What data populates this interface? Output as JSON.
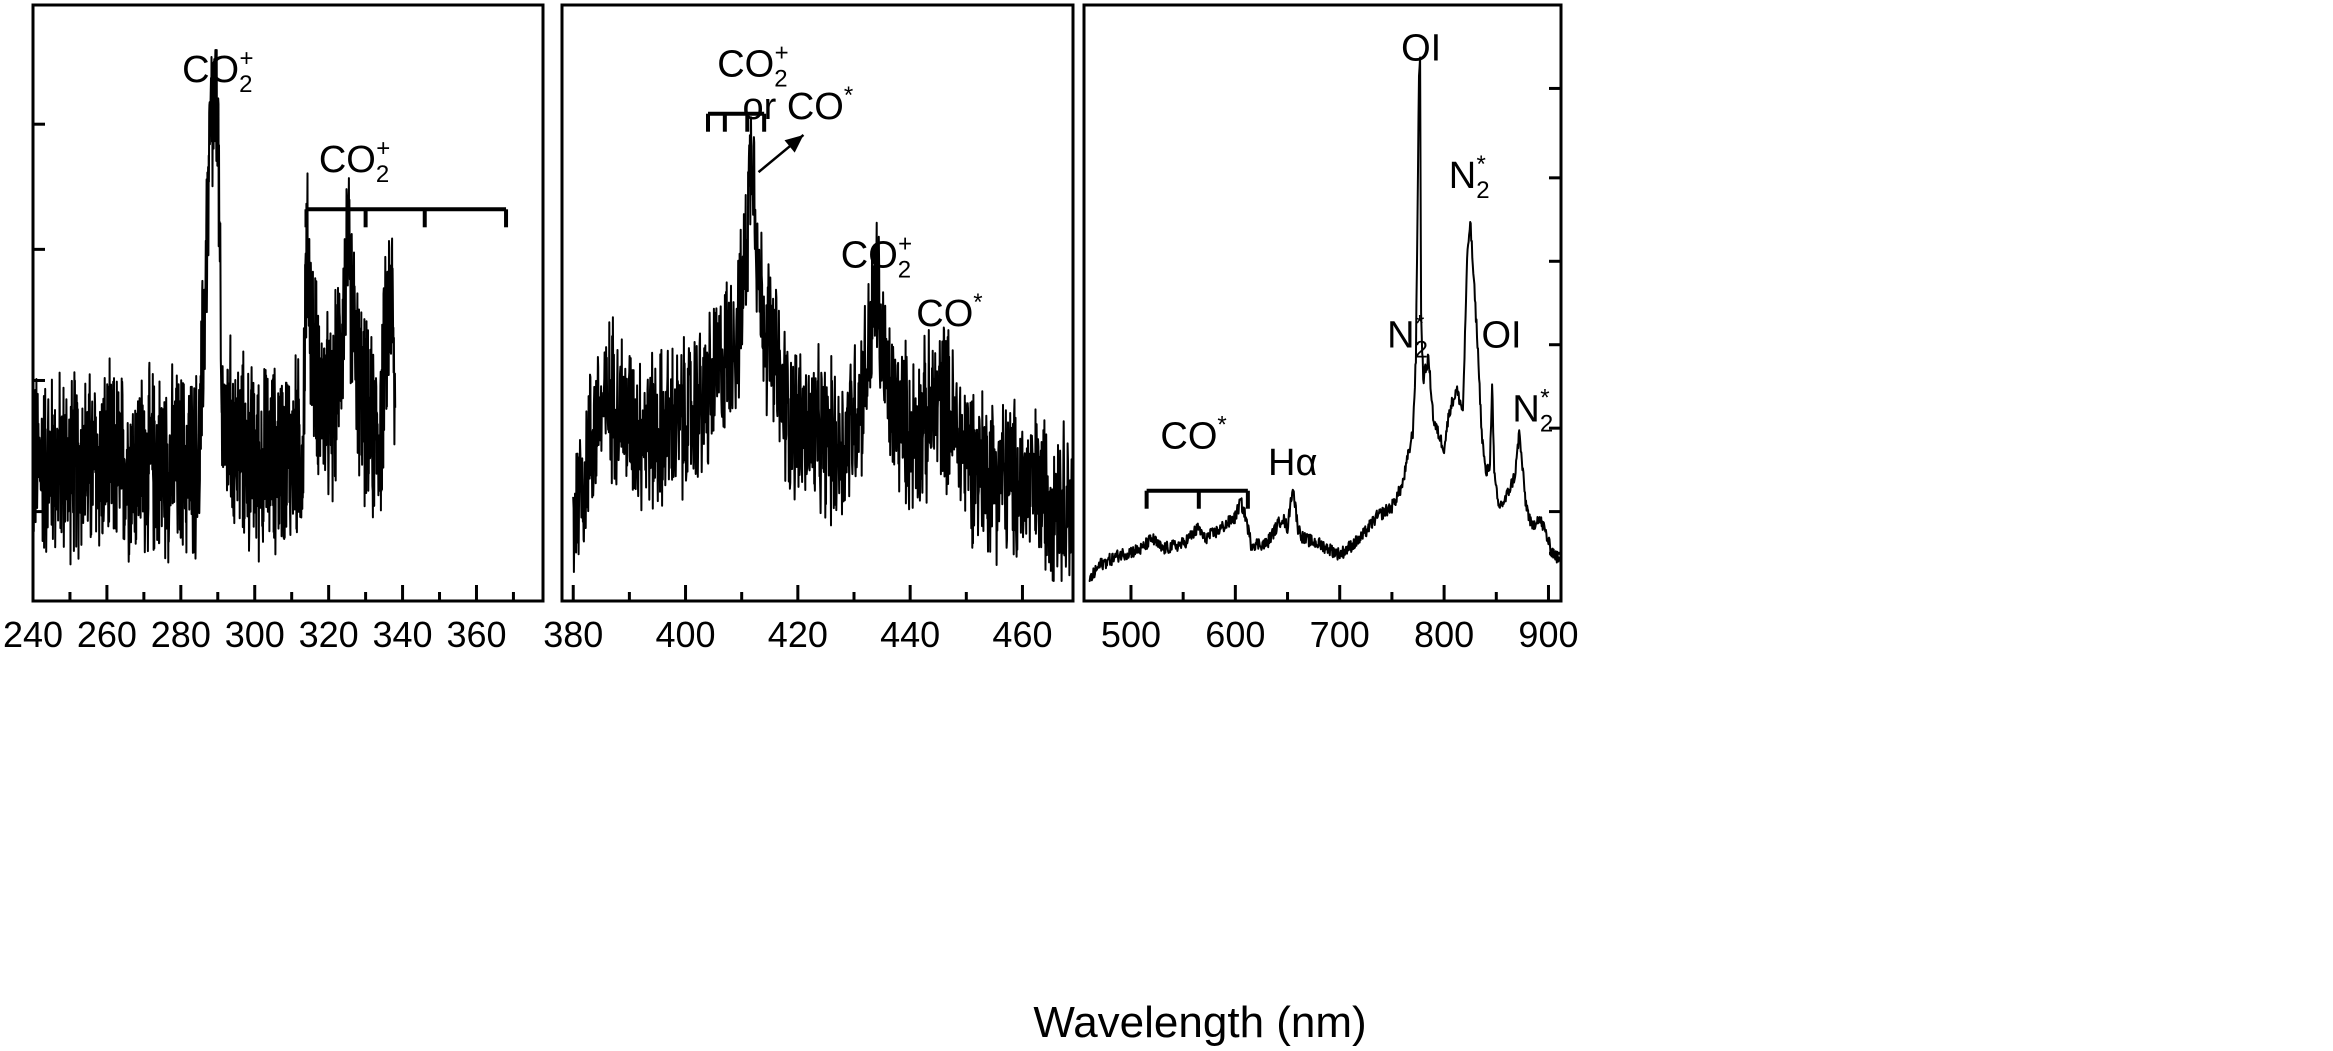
{
  "chart_data": {
    "type": "line",
    "xlabel": "Wavelength (nm)",
    "ylabel": "",
    "grid": false,
    "legend": "none",
    "colors": {
      "line": "#000000",
      "background": "#ffffff"
    },
    "panels": [
      {
        "xlim": [
          240,
          378
        ],
        "ylim": [
          0,
          1
        ],
        "xticks": [
          240,
          260,
          280,
          300,
          320,
          340,
          360
        ],
        "xtick_labels": [
          "240",
          "260",
          "280",
          "300",
          "320",
          "340",
          "360"
        ],
        "series": [
          {
            "noise_amp": 0.16,
            "x": [
              240,
              285,
              288,
              289,
              290,
              291,
              300,
              313,
              314,
              316,
              318,
              321,
              324,
              325,
              326,
              328,
              331,
              334,
              336,
              337,
              338
            ],
            "values": [
              0.22,
              0.22,
              0.85,
              0.88,
              0.9,
              0.3,
              0.22,
              0.25,
              0.62,
              0.42,
              0.35,
              0.3,
              0.5,
              0.62,
              0.55,
              0.38,
              0.28,
              0.28,
              0.5,
              0.55,
              0.3
            ]
          }
        ],
        "annotations": [
          {
            "main": "CO",
            "sub": "2",
            "sup": "+",
            "x": 290,
            "y": 0.94
          },
          {
            "main": "CO",
            "sub": "2",
            "sup": "+",
            "x": 327,
            "y": 0.77
          }
        ],
        "brackets": [
          {
            "x": [
              314,
              330,
              346,
              368
            ],
            "y": 0.7
          }
        ]
      },
      {
        "xlim": [
          378,
          469
        ],
        "ylim": [
          0,
          1
        ],
        "xticks": [
          380,
          400,
          420,
          440,
          460
        ],
        "xtick_labels": [
          "380",
          "400",
          "420",
          "440",
          "460"
        ],
        "series": [
          {
            "noise_amp": 0.14,
            "x": [
              380,
              384,
              387,
              390,
              394,
              400,
              404,
              407,
              410,
              411,
              412,
              413,
              415,
              418,
              422,
              428,
              432,
              434,
              436,
              440,
              443,
              446,
              448,
              452,
              460,
              469
            ],
            "values": [
              0.12,
              0.3,
              0.35,
              0.3,
              0.28,
              0.3,
              0.35,
              0.42,
              0.5,
              0.68,
              0.85,
              0.55,
              0.45,
              0.32,
              0.28,
              0.25,
              0.38,
              0.55,
              0.35,
              0.28,
              0.3,
              0.35,
              0.28,
              0.22,
              0.18,
              0.15
            ]
          }
        ],
        "annotations": [
          {
            "main": "CO",
            "sub": "2",
            "sup": "+",
            "x": 412,
            "y": 0.95
          },
          {
            "main": "or CO",
            "sub": "",
            "sup": "*",
            "x": 420,
            "y": 0.87
          },
          {
            "main": "CO",
            "sub": "2",
            "sup": "+",
            "x": 434,
            "y": 0.59
          },
          {
            "main": "CO",
            "sub": "",
            "sup": "*",
            "x": 447,
            "y": 0.48
          }
        ],
        "brackets": [
          {
            "x": [
              404,
              407,
              411,
              414
            ],
            "y": 0.88
          }
        ],
        "arrows": [
          {
            "from": [
              413,
              0.77
            ],
            "to": [
              421,
              0.84
            ]
          }
        ]
      },
      {
        "xlim": [
          455,
          912
        ],
        "ylim": [
          0,
          1
        ],
        "xticks": [
          500,
          600,
          700,
          800,
          900
        ],
        "xtick_labels": [
          "500",
          "600",
          "700",
          "800",
          "900"
        ],
        "series": [
          {
            "noise_amp": 0.012,
            "x": [
              460,
              470,
              490,
              510,
              520,
              530,
              550,
              565,
              570,
              580,
              600,
              605,
              610,
              615,
              630,
              645,
              650,
              655,
              660,
              665,
              680,
              700,
              720,
              735,
              750,
              760,
              770,
              773,
              776,
              777,
              778,
              780,
              785,
              790,
              800,
              805,
              812,
              818,
              822,
              825,
              828,
              832,
              836,
              840,
              844,
              846,
              848,
              852,
              858,
              864,
              868,
              872,
              878,
              884,
              890,
              896,
              902,
              910
            ],
            "values": [
              0.0,
              0.03,
              0.05,
              0.06,
              0.08,
              0.06,
              0.07,
              0.1,
              0.08,
              0.09,
              0.12,
              0.15,
              0.12,
              0.07,
              0.07,
              0.12,
              0.1,
              0.18,
              0.1,
              0.08,
              0.07,
              0.05,
              0.08,
              0.12,
              0.14,
              0.18,
              0.28,
              0.42,
              0.96,
              0.98,
              0.5,
              0.38,
              0.42,
              0.3,
              0.25,
              0.32,
              0.36,
              0.32,
              0.6,
              0.68,
              0.58,
              0.45,
              0.28,
              0.2,
              0.22,
              0.38,
              0.2,
              0.14,
              0.15,
              0.18,
              0.2,
              0.28,
              0.15,
              0.1,
              0.12,
              0.1,
              0.06,
              0.04
            ]
          }
        ],
        "annotations": [
          {
            "main": "OI",
            "sub": "",
            "sup": "",
            "x": 778,
            "y": 0.98
          },
          {
            "main": "N",
            "sub": "2",
            "sup": "*",
            "x": 824,
            "y": 0.74
          },
          {
            "main": "N",
            "sub": "2",
            "sup": "*",
            "x": 765,
            "y": 0.44
          },
          {
            "main": "OI",
            "sub": "",
            "sup": "",
            "x": 855,
            "y": 0.44
          },
          {
            "main": "N",
            "sub": "2",
            "sup": "*",
            "x": 885,
            "y": 0.3
          },
          {
            "main": "CO",
            "sub": "",
            "sup": "*",
            "x": 560,
            "y": 0.25
          },
          {
            "main": "Hα",
            "sub": "",
            "sup": "",
            "x": 655,
            "y": 0.2
          }
        ],
        "brackets": [
          {
            "x": [
              515,
              565,
              612
            ],
            "y": 0.17
          }
        ]
      }
    ]
  }
}
